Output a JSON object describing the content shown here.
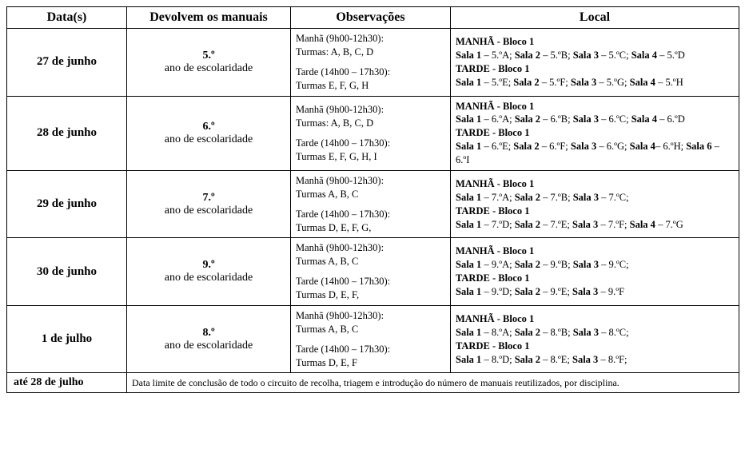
{
  "headers": {
    "c1": "Data(s)",
    "c2": "Devolvem os manuais",
    "c3": "Observações",
    "c4": "Local"
  },
  "rows": [
    {
      "date": "27 de junho",
      "grade_num": "5.º",
      "grade_sub": "ano de escolaridade",
      "obs_m1": "Manhã (9h00-12h30):",
      "obs_m2": "Turmas: A, B, C, D",
      "obs_t1": "Tarde (14h00 – 17h30):",
      "obs_t2": "Turmas E, F, G, H",
      "local_html": "<span class='hdr'>MANHÃ - Bloco 1</span><br><b>Sala 1</b> – 5.ºA; <b>Sala 2</b> – 5.ºB; <b>Sala 3</b> – 5.ºC; <b>Sala 4</b> – 5.ºD<br><span class='hdr'>TARDE - Bloco 1</span><br><b>Sala 1</b> – 5.ºE; <b>Sala 2</b> – 5.ºF; <b>Sala 3</b> – 5.ºG; <b>Sala 4</b> – 5.ºH"
    },
    {
      "date": "28 de junho",
      "grade_num": "6.º",
      "grade_sub": "ano de escolaridade",
      "obs_m1": "Manhã (9h00-12h30):",
      "obs_m2": "Turmas: A, B, C, D",
      "obs_t1": "Tarde (14h00 – 17h30):",
      "obs_t2": "Turmas E, F, G, H, I",
      "local_html": "<span class='hdr'>MANHÃ - Bloco 1</span><br><b>Sala 1</b> – 6.ºA; <b>Sala 2</b> – 6.ºB; <b>Sala 3</b> – 6.ºC; <b>Sala 4</b> – 6.ºD<br><span class='hdr'>TARDE - Bloco 1</span><br><b>Sala 1</b> – 6.ºE; <b>Sala 2</b> – 6.ºF; <b>Sala 3</b> – 6.ºG; <b>Sala 4</b>– 6.ºH; <b>Sala 6</b> – 6.ºI"
    },
    {
      "date": "29 de junho",
      "grade_num": "7.º",
      "grade_sub": "ano de escolaridade",
      "obs_m1": "Manhã (9h00-12h30):",
      "obs_m2": "Turmas A, B, C",
      "obs_t1": "Tarde (14h00 – 17h30):",
      "obs_t2": "Turmas D, E, F, G,",
      "local_html": "<span class='hdr'>MANHÃ - Bloco 1</span><br><b>Sala 1</b> – 7.ºA; <b>Sala 2</b> – 7.ºB; <b>Sala 3</b> – 7.ºC;<br><span class='hdr'>TARDE - Bloco 1</span><br><b>Sala 1</b> – 7.ºD; <b>Sala 2</b> – 7.ºE; <b>Sala 3</b> – 7.ºF; <b>Sala 4</b> – 7.ºG"
    },
    {
      "date": "30 de junho",
      "grade_num": "9.º",
      "grade_sub": "ano de escolaridade",
      "obs_m1": "Manhã (9h00-12h30):",
      "obs_m2": "Turmas A, B, C",
      "obs_t1": "Tarde (14h00 – 17h30):",
      "obs_t2": "Turmas D, E, F,",
      "local_html": "<span class='hdr'>MANHÃ - Bloco 1</span><br><b>Sala 1</b> – 9.ºA; <b>Sala 2</b> – 9.ºB; <b>Sala 3</b> – 9.ºC;<br><span class='hdr'>TARDE - Bloco 1</span><br><b>Sala 1</b> – 9.ºD; <b>Sala 2</b> – 9.ºE; <b>Sala 3</b> – 9.ºF"
    },
    {
      "date": "1 de julho",
      "grade_num": "8.º",
      "grade_sub": "ano de escolaridade",
      "obs_m1": "Manhã (9h00-12h30):",
      "obs_m2": "Turmas A, B, C",
      "obs_t1": "Tarde (14h00 – 17h30):",
      "obs_t2": "Turmas D, E, F",
      "local_html": "<span class='hdr'>MANHÃ - Bloco 1</span><br><b>Sala 1</b> – 8.ºA; <b>Sala 2</b> – 8.ºB; <b>Sala 3</b> – 8.ºC;<br><span class='hdr'>TARDE - Bloco 1</span><br><b>Sala 1</b> – 8.ºD; <b>Sala 2</b> – 8.ºE; <b>Sala 3</b> – 8.ºF;"
    }
  ],
  "footer": {
    "date": "até 28 de julho",
    "text": "Data limite de conclusão de todo o circuito de recolha, triagem e introdução do número de manuais reutilizados, por disciplina."
  }
}
